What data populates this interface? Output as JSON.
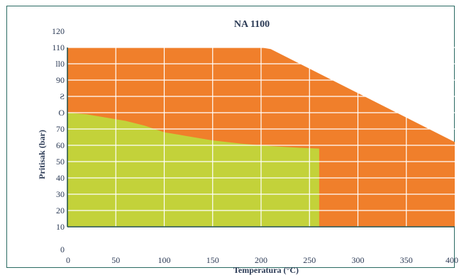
{
  "chart_data": {
    "type": "area",
    "title": "NA 1100",
    "xlabel": "Temperatura (°C)",
    "ylabel": "Pritisak (bar)",
    "x_ticks": [
      "0",
      "50",
      "100",
      "150",
      "200",
      "250",
      "300",
      "350",
      "400"
    ],
    "y_ticks": [
      "0",
      "10",
      "20",
      "30",
      "40",
      "50",
      "60",
      "70",
      "O",
      "Ƨ",
      "90",
      "ll0",
      "110",
      "120"
    ],
    "xlim": [
      0,
      400
    ],
    "ylim": [
      0,
      120
    ],
    "grid": true,
    "series": [
      {
        "color": "#f07f2b",
        "x": [
          0,
          200,
          210,
          400
        ],
        "y": [
          120,
          120,
          119,
          62
        ]
      },
      {
        "color": "#c3d23a",
        "x": [
          0,
          20,
          40,
          60,
          80,
          100,
          120,
          150,
          180,
          210,
          240,
          260,
          260
        ],
        "y": [
          80,
          79,
          77,
          75,
          72,
          68,
          66,
          63,
          61,
          59.5,
          58.5,
          58,
          10
        ]
      }
    ],
    "colors": {
      "frame": "#2a6a62",
      "axis": "#1f4f4a",
      "grid": "#ffffff",
      "text": "#2b3a55"
    }
  }
}
